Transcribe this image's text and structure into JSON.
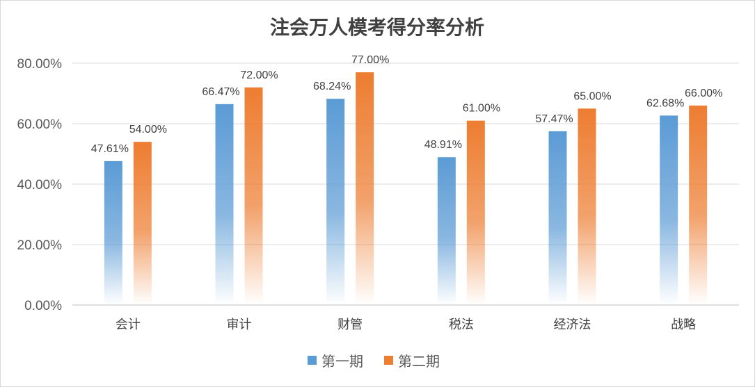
{
  "chart_data": {
    "type": "bar",
    "title": "注会万人模考得分率分析",
    "categories": [
      "会计",
      "审计",
      "财管",
      "税法",
      "经济法",
      "战略"
    ],
    "series": [
      {
        "name": "第一期",
        "color": "#5B9BD5",
        "values": [
          47.61,
          66.47,
          68.24,
          48.91,
          57.47,
          62.68
        ],
        "labels": [
          "47.61%",
          "66.47%",
          "68.24%",
          "48.91%",
          "57.47%",
          "62.68%"
        ]
      },
      {
        "name": "第二期",
        "color": "#ED7D31",
        "values": [
          54.0,
          72.0,
          77.0,
          61.0,
          65.0,
          66.0
        ],
        "labels": [
          "54.00%",
          "72.00%",
          "77.00%",
          "61.00%",
          "65.00%",
          "66.00%"
        ]
      }
    ],
    "y_ticks": [
      0,
      20,
      40,
      60,
      80
    ],
    "y_tick_labels": [
      "0.00%",
      "20.00%",
      "40.00%",
      "60.00%",
      "80.00%"
    ],
    "ylim": [
      0,
      80
    ],
    "grid": true,
    "legend_position": "bottom"
  }
}
